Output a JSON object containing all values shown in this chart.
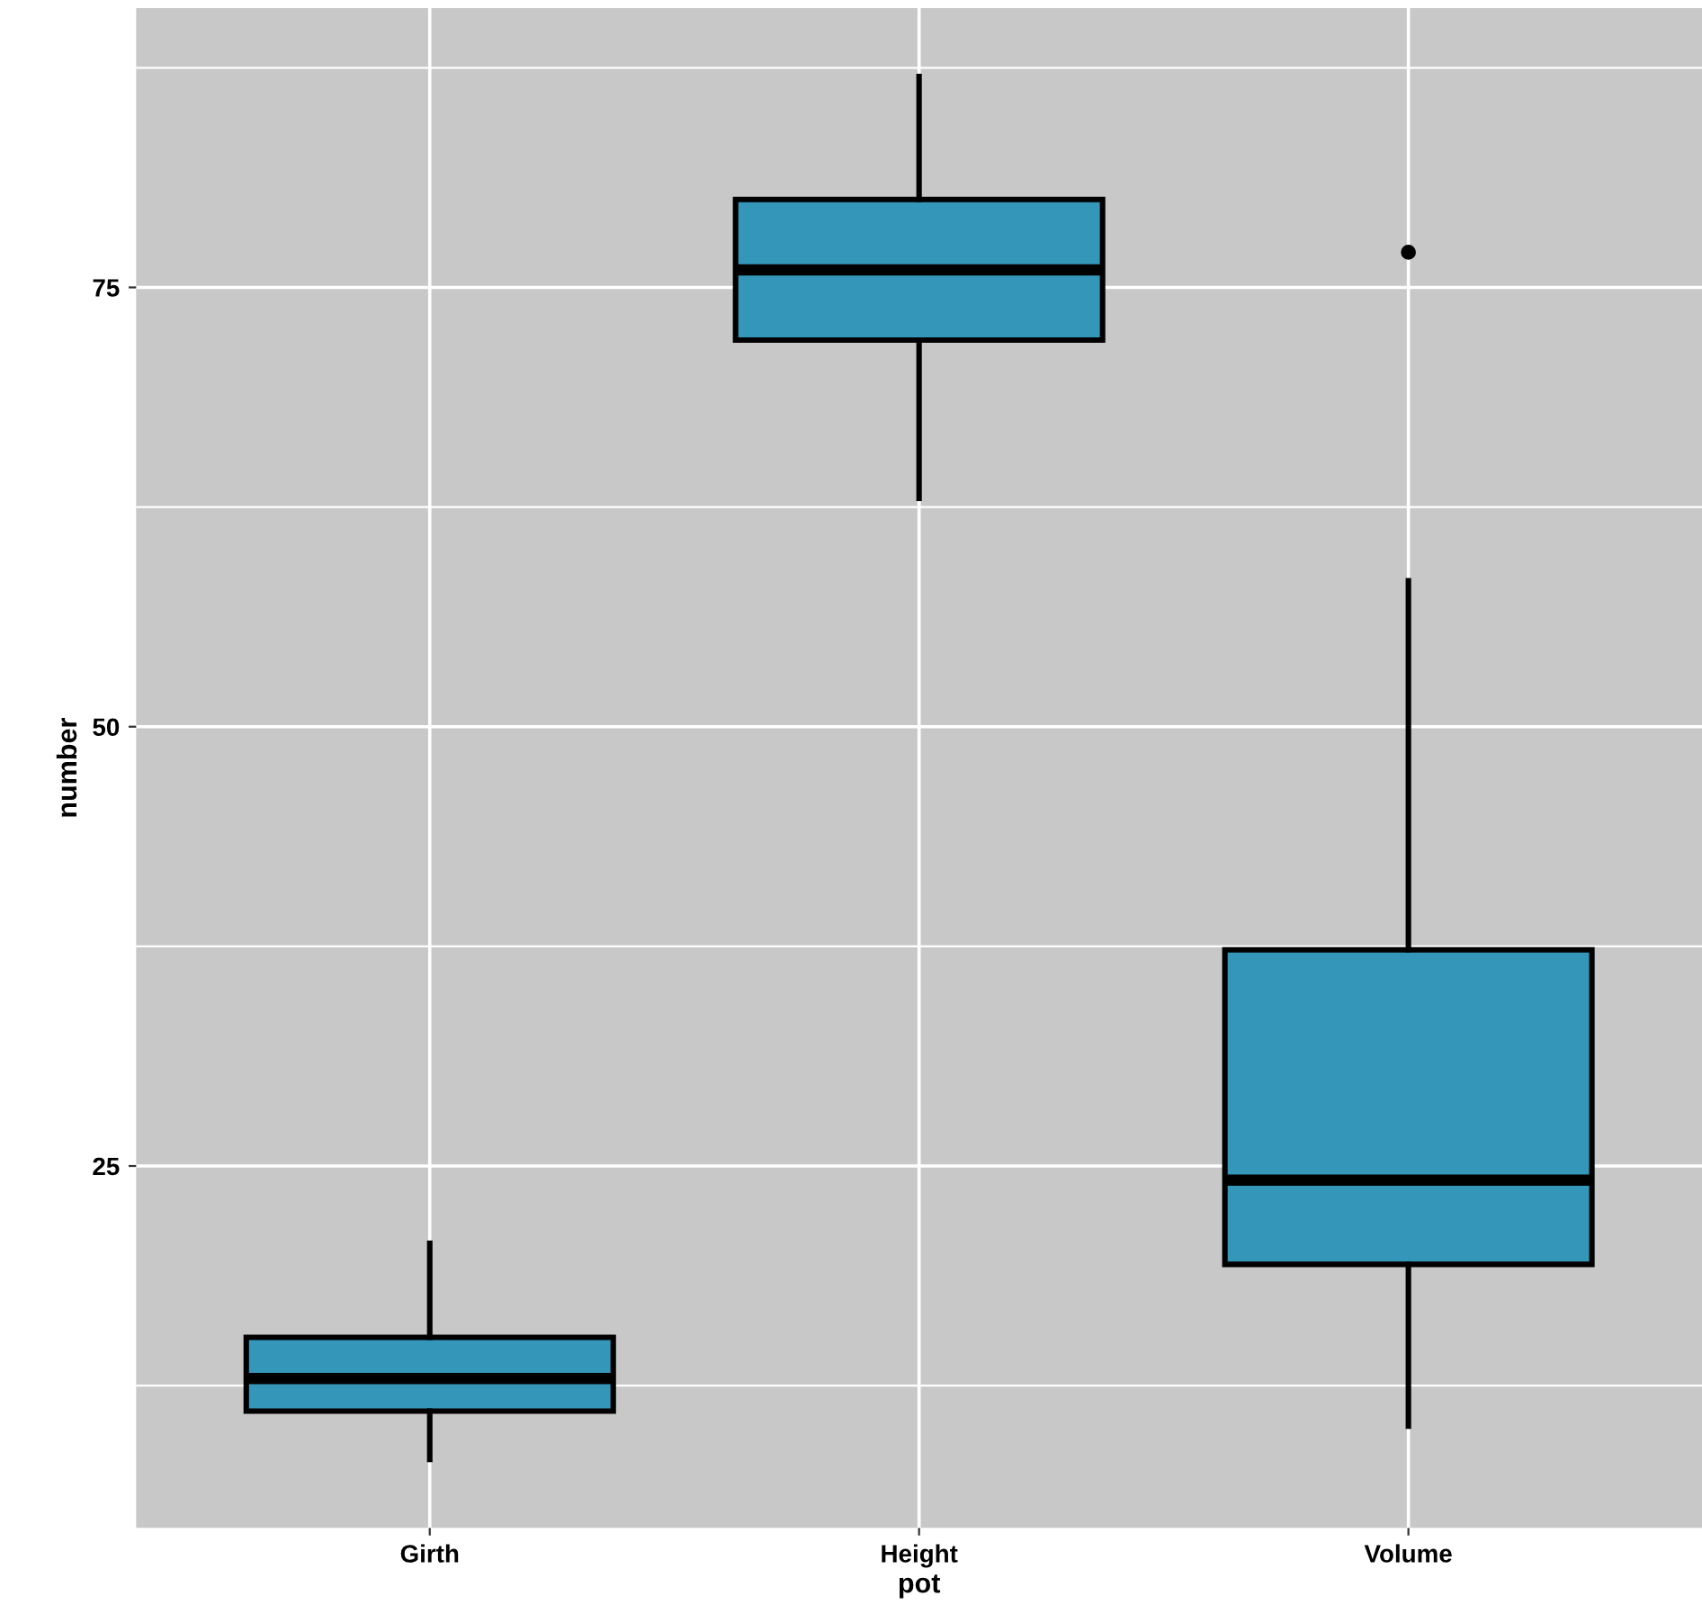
{
  "chart_data": {
    "type": "box",
    "xlabel": "pot",
    "ylabel": "number",
    "categories": [
      "Girth",
      "Height",
      "Volume"
    ],
    "boxes": [
      {
        "low": 8.3,
        "q1": 11.05,
        "median": 12.9,
        "q3": 15.25,
        "high": 20.6
      },
      {
        "low": 63,
        "q1": 72,
        "median": 76,
        "q3": 80,
        "high": 87
      },
      {
        "low": 10.2,
        "q1": 19.4,
        "median": 24.2,
        "q3": 37.3,
        "high": 58.3,
        "outliers": [
          77
        ]
      }
    ],
    "color": "#3497ba",
    "ylim": [
      4.4,
      90.9
    ],
    "yticks": [
      25,
      50,
      75
    ],
    "grid": true
  }
}
